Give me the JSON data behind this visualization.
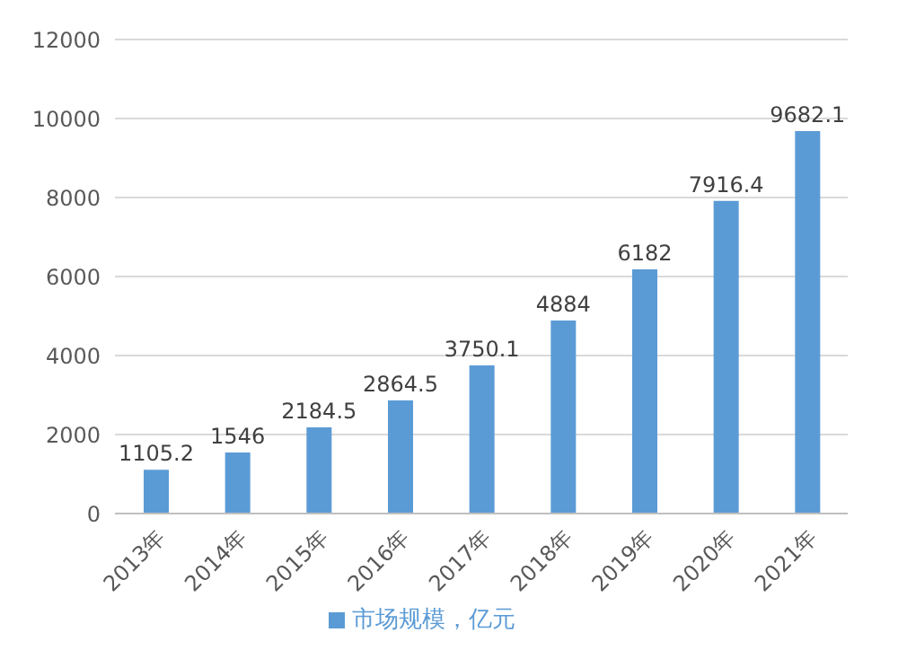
{
  "chart_data": {
    "type": "bar",
    "categories": [
      "2013年",
      "2014年",
      "2015年",
      "2016年",
      "2017年",
      "2018年",
      "2019年",
      "2020年",
      "2021年"
    ],
    "series": [
      {
        "name": "市场规模，亿元",
        "color": "#5b9bd5",
        "values": [
          1105.2,
          1546,
          2184.5,
          2864.5,
          3750.1,
          4884,
          6182,
          7916.4,
          9682.1
        ]
      }
    ],
    "ylim": [
      0,
      12000
    ],
    "yticks": [
      0,
      2000,
      4000,
      6000,
      8000,
      10000,
      12000
    ],
    "grid": "y",
    "legend": "bottom",
    "data_labels": true
  }
}
